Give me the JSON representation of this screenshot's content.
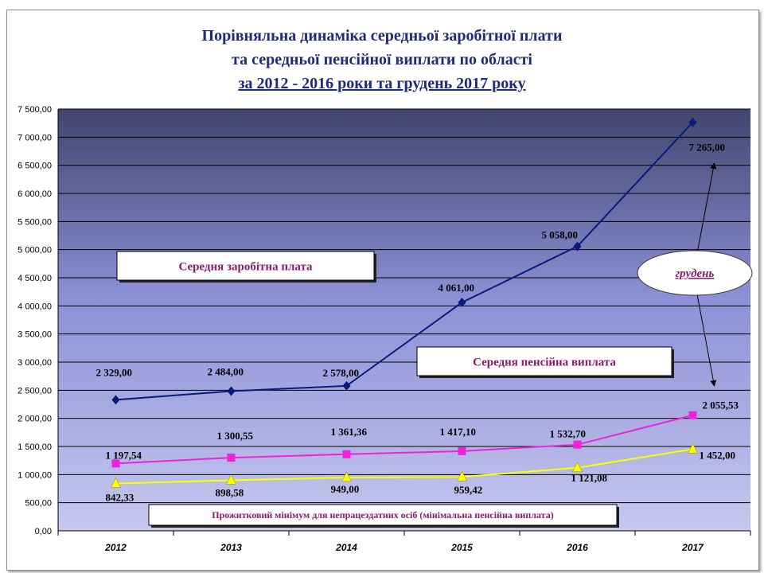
{
  "title": {
    "line1": "Порівняльна динаміка середньої заробітної плати",
    "line2": "та середньої пенсійної виплати по області",
    "line3": "за 2012 - 2016 роки та грудень 2017 року"
  },
  "chart_data": {
    "type": "line",
    "categories": [
      "2012",
      "2013",
      "2014",
      "2015",
      "2016",
      "2017"
    ],
    "ylim": [
      0,
      7500
    ],
    "yticks": [
      "0,00",
      "500,00",
      "1 000,00",
      "1 500,00",
      "2 000,00",
      "2 500,00",
      "3 000,00",
      "3 500,00",
      "4 000,00",
      "4 500,00",
      "5 000,00",
      "5 500,00",
      "6 000,00",
      "6 500,00",
      "7 000,00",
      "7 500,00"
    ],
    "grid": true,
    "series": [
      {
        "name": "Середня заробітна плата",
        "color": "#0a1a7a",
        "marker": "diamond",
        "values": [
          2329,
          2484,
          2578,
          4061,
          5058,
          7265
        ],
        "labels": [
          "2 329,00",
          "2 484,00",
          "2 578,00",
          "4 061,00",
          "5 058,00",
          "7 265,00"
        ]
      },
      {
        "name": "Середня пенсійна виплата",
        "color": "#ee22dd",
        "marker": "square",
        "values": [
          1197.54,
          1300.55,
          1361.36,
          1417.1,
          1532.7,
          2055.53
        ],
        "labels": [
          "1 197,54",
          "1 300,55",
          "1 361,36",
          "1 417,10",
          "1 532,70",
          "2 055,53"
        ]
      },
      {
        "name": "Прожитковий мінімум для непрацездатних осіб (мінімальна пенсійна виплата)",
        "color": "#ffff00",
        "marker": "triangle",
        "values": [
          842.33,
          898.58,
          949.0,
          959.42,
          1121.08,
          1452.0
        ],
        "labels": [
          "842,33",
          "898,58",
          "949,00",
          "959,42",
          "1 121,08",
          "1 452,00"
        ]
      }
    ],
    "annotation": "грудень"
  }
}
